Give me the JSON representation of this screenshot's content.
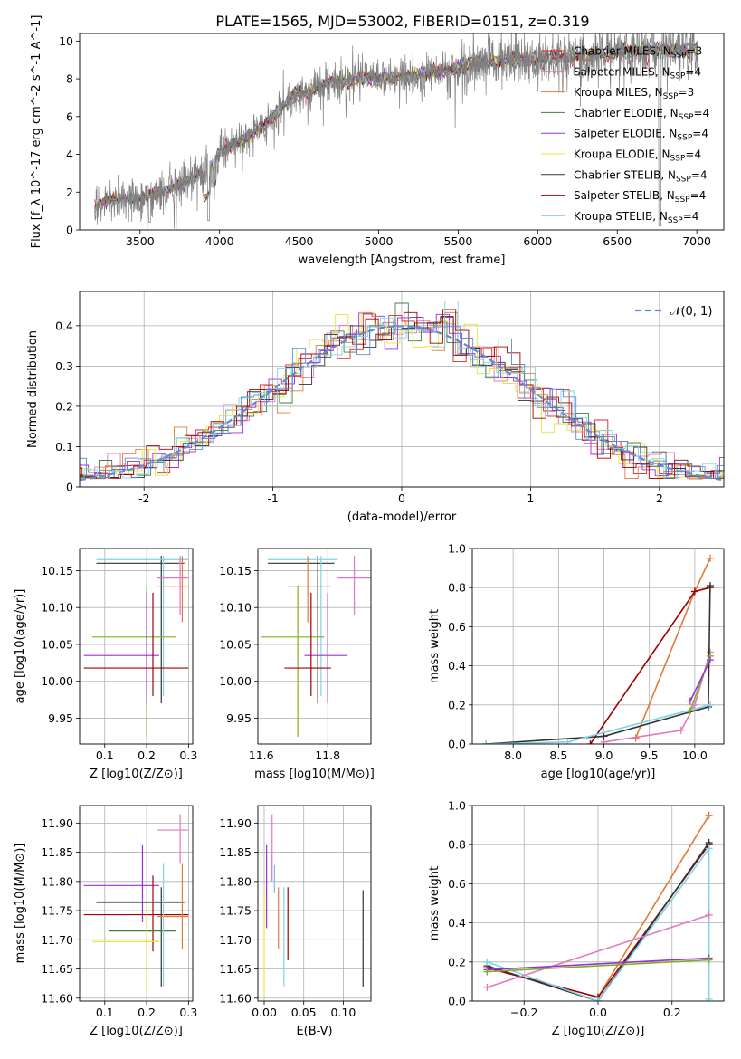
{
  "chart_data": [
    {
      "type": "line",
      "title": "PLATE=1565, MJD=53002, FIBERID=0151, z=0.319",
      "xlabel": "wavelength [Angstrom, rest frame]",
      "ylabel": "Flux [f_λ 10^-17 erg cm^-2 s^-1 A^-1]",
      "xlim": [
        3120,
        7170
      ],
      "ylim": [
        0,
        10.4
      ],
      "xticks": [
        3500,
        4000,
        4500,
        5000,
        5500,
        6000,
        6500,
        7000
      ],
      "yticks": [
        0,
        2,
        4,
        6,
        8,
        10
      ],
      "legend_position": "top-right",
      "legend": [
        {
          "name": "Chabrier MILES",
          "nssp": "3",
          "color": "#d62728"
        },
        {
          "name": "Salpeter MILES",
          "nssp": "4",
          "color": "#e377c2"
        },
        {
          "name": "Kroupa MILES",
          "nssp": "3",
          "color": "#e07b39"
        },
        {
          "name": "Chabrier ELODIE",
          "nssp": "4",
          "color": "#3f7f3f"
        },
        {
          "name": "Salpeter ELODIE",
          "nssp": "4",
          "color": "#9b30d9"
        },
        {
          "name": "Kroupa ELODIE",
          "nssp": "4",
          "color": "#e8e337"
        },
        {
          "name": "Chabrier STELIB",
          "nssp": "4",
          "color": "#333333"
        },
        {
          "name": "Salpeter STELIB",
          "nssp": "4",
          "color": "#a00000"
        },
        {
          "name": "Kroupa STELIB",
          "nssp": "4",
          "color": "#7fd3e8"
        }
      ],
      "continuum": {
        "x": [
          3200,
          3230,
          3300,
          3400,
          3500,
          3600,
          3700,
          3800,
          3900,
          4000,
          4100,
          4200,
          4300,
          4400,
          4500,
          4600,
          4700,
          4800,
          4900,
          5000,
          5100,
          5200,
          5300,
          5400,
          5500,
          5600,
          5700,
          5800,
          5900,
          6000,
          6100,
          6200,
          6300,
          6400,
          6500,
          6600,
          6700,
          6800,
          6900,
          7000
        ],
        "y": [
          0.8,
          1.3,
          1.6,
          1.7,
          1.6,
          1.9,
          2.2,
          2.6,
          3.0,
          4.1,
          4.6,
          5.0,
          5.7,
          6.6,
          7.2,
          7.5,
          7.8,
          7.9,
          8.0,
          8.0,
          8.1,
          8.1,
          8.3,
          8.4,
          8.6,
          8.8,
          8.9,
          9.0,
          9.0,
          9.1,
          9.1,
          9.2,
          9.2,
          9.3,
          9.4,
          9.4,
          9.5,
          9.5,
          9.6,
          9.6
        ]
      }
    },
    {
      "type": "line",
      "xlabel": "(data-model)/error",
      "ylabel": "Normed distribution",
      "xlim": [
        -2.5,
        2.5
      ],
      "ylim": [
        0,
        0.485
      ],
      "xticks": [
        -2,
        -1,
        0,
        1,
        2
      ],
      "yticks": [
        0.0,
        0.1,
        0.2,
        0.3,
        0.4
      ],
      "grid": true,
      "legend_position": "top-right",
      "legend": [
        {
          "name": "𝒩(0, 1)",
          "color": "#5b8ed6",
          "style": "dashed"
        }
      ]
    },
    {
      "type": "scatter",
      "xlabel": "Z [log10(Z/Z⊙)]",
      "ylabel": "age  [log10(age/yr)]",
      "xlim": [
        0.04,
        0.31
      ],
      "ylim": [
        9.915,
        10.18
      ],
      "xticks": [
        "0.1",
        "0.2",
        "0.3"
      ],
      "yticks": [
        "9.95",
        "10.00",
        "10.05",
        "10.10",
        "10.15"
      ],
      "grid": true,
      "points": [
        {
          "x": 0.235,
          "y": 10.16,
          "xerr": [
            0.08,
            0.29
          ],
          "yerr": [
            9.97,
            10.17
          ],
          "color": "#333333"
        },
        {
          "x": 0.24,
          "y": 10.165,
          "xerr": [
            0.08,
            0.3
          ],
          "yerr": [
            9.98,
            10.17
          ],
          "color": "#7fd3e8"
        },
        {
          "x": 0.28,
          "y": 10.14,
          "xerr": [
            0.225,
            0.3
          ],
          "yerr": [
            10.09,
            10.17
          ],
          "color": "#e377c2"
        },
        {
          "x": 0.285,
          "y": 10.128,
          "xerr": [
            0.225,
            0.3
          ],
          "yerr": [
            10.08,
            10.17
          ],
          "color": "#e07b39"
        },
        {
          "x": 0.2,
          "y": 10.06,
          "xerr": [
            0.07,
            0.27
          ],
          "yerr": [
            9.925,
            10.13
          ],
          "color": "#7fb020"
        },
        {
          "x": 0.2,
          "y": 10.035,
          "xerr": [
            0.05,
            0.23
          ],
          "yerr": [
            9.97,
            10.12
          ],
          "color": "#9b30d9"
        },
        {
          "x": 0.215,
          "y": 10.018,
          "xerr": [
            0.05,
            0.3
          ],
          "yerr": [
            9.98,
            10.12
          ],
          "color": "#a00000"
        }
      ]
    },
    {
      "type": "scatter",
      "xlabel": "mass [log10(M/M⊙)]",
      "xlim": [
        11.59,
        11.93
      ],
      "ylim": [
        9.915,
        10.18
      ],
      "xticks": [
        "11.6",
        "11.8"
      ],
      "yticks": [
        "9.95",
        "10.00",
        "10.05",
        "10.10",
        "10.15"
      ],
      "grid": true,
      "points": [
        {
          "x": 11.77,
          "y": 10.16,
          "xerr": [
            11.62,
            11.82
          ],
          "yerr": [
            9.97,
            10.17
          ],
          "color": "#333333"
        },
        {
          "x": 11.78,
          "y": 10.165,
          "xerr": [
            11.62,
            11.83
          ],
          "yerr": [
            9.98,
            10.17
          ],
          "color": "#7fd3e8"
        },
        {
          "x": 11.88,
          "y": 10.14,
          "xerr": [
            11.83,
            11.93
          ],
          "yerr": [
            10.09,
            10.17
          ],
          "color": "#e377c2"
        },
        {
          "x": 11.74,
          "y": 10.128,
          "xerr": [
            11.68,
            11.81
          ],
          "yerr": [
            10.08,
            10.17
          ],
          "color": "#e07b39"
        },
        {
          "x": 11.71,
          "y": 10.06,
          "xerr": [
            11.6,
            11.79
          ],
          "yerr": [
            9.925,
            10.13
          ],
          "color": "#7fb020"
        },
        {
          "x": 11.8,
          "y": 10.035,
          "xerr": [
            11.73,
            11.86
          ],
          "yerr": [
            9.97,
            10.12
          ],
          "color": "#9b30d9"
        },
        {
          "x": 11.75,
          "y": 10.018,
          "xerr": [
            11.67,
            11.81
          ],
          "yerr": [
            9.98,
            10.12
          ],
          "color": "#a00000"
        }
      ]
    },
    {
      "type": "line",
      "xlabel": "age  [log10(age/yr)]",
      "ylabel": "mass weight",
      "xlim": [
        7.55,
        10.32
      ],
      "ylim": [
        0.0,
        1.0
      ],
      "xticks": [
        "8.0",
        "8.5",
        "9.0",
        "9.5",
        "10.0"
      ],
      "yticks": [
        "0.0",
        "0.2",
        "0.4",
        "0.6",
        "0.8",
        "1.0"
      ],
      "grid": true,
      "series": [
        {
          "color": "#e07b39",
          "x": [
            9.35,
            10.0,
            10.17
          ],
          "y": [
            0.03,
            0.78,
            0.95
          ]
        },
        {
          "color": "#a00000",
          "x": [
            8.85,
            10.0,
            10.17
          ],
          "y": [
            0.0,
            0.78,
            0.8
          ]
        },
        {
          "color": "#e377c2",
          "x": [
            9.0,
            9.85,
            10.0,
            10.17
          ],
          "y": [
            0.01,
            0.07,
            0.2,
            0.47
          ]
        },
        {
          "color": "#333333",
          "x": [
            7.7,
            9.0,
            10.15,
            10.17
          ],
          "y": [
            0.0,
            0.04,
            0.19,
            0.81
          ]
        },
        {
          "color": "#7fd3e8",
          "x": [
            7.7,
            8.6,
            10.17
          ],
          "y": [
            0.0,
            0.01,
            0.2
          ]
        },
        {
          "color": "#7fb020",
          "x": [
            9.95,
            10.17
          ],
          "y": [
            0.17,
            0.45
          ]
        },
        {
          "color": "#9b30d9",
          "x": [
            9.95,
            10.17
          ],
          "y": [
            0.22,
            0.43
          ]
        }
      ]
    },
    {
      "type": "scatter",
      "xlabel": "Z [log10(Z/Z⊙)]",
      "ylabel": "mass [log10(M/M⊙)]",
      "xlim": [
        0.04,
        0.31
      ],
      "ylim": [
        11.595,
        11.93
      ],
      "xticks": [
        "0.1",
        "0.2",
        "0.3"
      ],
      "yticks": [
        "11.60",
        "11.65",
        "11.70",
        "11.75",
        "11.80",
        "11.85",
        "11.90"
      ],
      "grid": true,
      "points": [
        {
          "x": 0.28,
          "y": 11.888,
          "xerr": [
            0.225,
            0.3
          ],
          "yerr": [
            11.83,
            11.915
          ],
          "color": "#e377c2"
        },
        {
          "x": 0.19,
          "y": 11.793,
          "xerr": [
            0.05,
            0.23
          ],
          "yerr": [
            11.73,
            11.862
          ],
          "color": "#9b30d9"
        },
        {
          "x": 0.235,
          "y": 11.764,
          "xerr": [
            0.08,
            0.29
          ],
          "yerr": [
            11.62,
            11.79
          ],
          "color": "#333333"
        },
        {
          "x": 0.215,
          "y": 11.743,
          "xerr": [
            0.05,
            0.3
          ],
          "yerr": [
            11.68,
            11.81
          ],
          "color": "#a00000"
        },
        {
          "x": 0.285,
          "y": 11.74,
          "xerr": [
            0.225,
            0.3
          ],
          "yerr": [
            11.685,
            11.83
          ],
          "color": "#e07b39"
        },
        {
          "x": 0.2,
          "y": 11.715,
          "xerr": [
            0.11,
            0.27
          ],
          "yerr": [
            11.61,
            11.74
          ],
          "color": "#3f7f3f"
        },
        {
          "x": 0.2,
          "y": 11.697,
          "xerr": [
            0.07,
            0.23
          ],
          "yerr": [
            11.61,
            11.76
          ],
          "color": "#e8e337"
        },
        {
          "x": 0.24,
          "y": 11.765,
          "xerr": [
            0.08,
            0.3
          ],
          "yerr": [
            11.62,
            11.83
          ],
          "color": "#7fd3e8"
        }
      ]
    },
    {
      "type": "scatter",
      "xlabel": "E(B-V)",
      "xlim": [
        -0.008,
        0.135
      ],
      "ylim": [
        11.595,
        11.93
      ],
      "xticks": [
        "0.00",
        "0.05",
        "0.10"
      ],
      "yticks": [
        "11.60",
        "11.65",
        "11.70",
        "11.75",
        "11.80",
        "11.85",
        "11.90"
      ],
      "grid": true,
      "points": [
        {
          "x": 0.0,
          "y": 11.76,
          "yerr": [
            11.6,
            11.78
          ],
          "color": "#e8e337"
        },
        {
          "x": 0.003,
          "y": 11.8,
          "yerr": [
            11.72,
            11.862
          ],
          "color": "#9b30d9"
        },
        {
          "x": 0.01,
          "y": 11.86,
          "yerr": [
            11.8,
            11.915
          ],
          "color": "#e377c2"
        },
        {
          "x": 0.013,
          "y": 11.8,
          "yerr": [
            11.78,
            11.828
          ],
          "color": "#7fb8e8"
        },
        {
          "x": 0.018,
          "y": 11.74,
          "yerr": [
            11.685,
            11.79
          ],
          "color": "#e07b39"
        },
        {
          "x": 0.025,
          "y": 11.75,
          "yerr": [
            11.62,
            11.79
          ],
          "color": "#7fd3e8"
        },
        {
          "x": 0.03,
          "y": 11.74,
          "yerr": [
            11.665,
            11.79
          ],
          "color": "#a00000"
        },
        {
          "x": 0.125,
          "y": 11.7,
          "yerr": [
            11.62,
            11.785
          ],
          "color": "#333333"
        }
      ]
    },
    {
      "type": "line",
      "xlabel": "Z [log10(Z/Z⊙)]",
      "ylabel": "mass weight",
      "xlim": [
        -0.34,
        0.34
      ],
      "ylim": [
        0.0,
        1.0
      ],
      "xticks": [
        "−0.2",
        "0.0",
        "0.2"
      ],
      "yticks": [
        "0.0",
        "0.2",
        "0.4",
        "0.6",
        "0.8",
        "1.0"
      ],
      "grid": true,
      "series": [
        {
          "color": "#e07b39",
          "x": [
            0.0,
            0.3
          ],
          "y": [
            0.02,
            0.95
          ]
        },
        {
          "color": "#a00000",
          "x": [
            -0.3,
            0.0,
            0.3
          ],
          "y": [
            0.17,
            0.02,
            0.8
          ]
        },
        {
          "color": "#333333",
          "x": [
            -0.3,
            0.0,
            0.3
          ],
          "y": [
            0.18,
            0.0,
            0.81
          ]
        },
        {
          "color": "#7fd3e8",
          "x": [
            -0.3,
            0.0,
            0.3,
            0.3
          ],
          "y": [
            0.2,
            0.0,
            0.78,
            0.01
          ]
        },
        {
          "color": "#e377c2",
          "x": [
            -0.3,
            0.3
          ],
          "y": [
            0.07,
            0.44
          ]
        },
        {
          "color": "#9b30d9",
          "x": [
            -0.3,
            0.3
          ],
          "y": [
            0.16,
            0.22
          ]
        },
        {
          "color": "#7fb020",
          "x": [
            -0.3,
            0.3
          ],
          "y": [
            0.15,
            0.21
          ]
        }
      ]
    }
  ]
}
